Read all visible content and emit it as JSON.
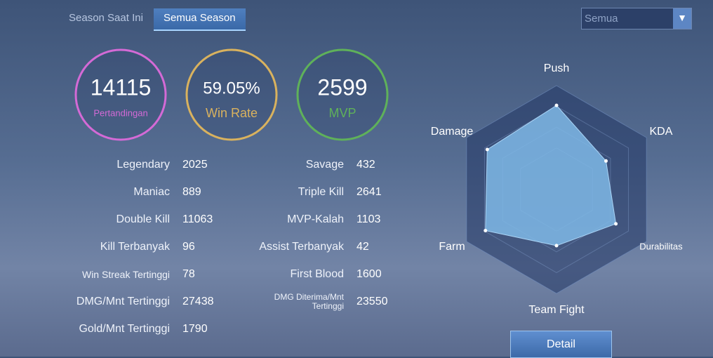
{
  "tabs": [
    "Season Saat Ini",
    "Semua Season"
  ],
  "filter": "Semua",
  "summary": [
    {
      "value": 14115,
      "label": "Pertandingan",
      "color": "#d46ad6"
    },
    {
      "value": 59.05,
      "value_label": "59.05%",
      "label": "Win Rate",
      "color": "#d9b25e"
    },
    {
      "value": 2599,
      "label": "MVP",
      "color": "#5fb15a"
    }
  ],
  "stats_left": [
    {
      "label": "Legendary",
      "value": 2025
    },
    {
      "label": "Maniac",
      "value": 889
    },
    {
      "label": "Double Kill",
      "value": 11063
    },
    {
      "label": "Kill Terbanyak",
      "value": 96
    },
    {
      "label": "Win Streak Tertinggi",
      "value": 78
    },
    {
      "label": "DMG/Mnt Tertinggi",
      "value": 27438
    },
    {
      "label": "Gold/Mnt Tertinggi",
      "value": 1790
    }
  ],
  "stats_right": [
    {
      "label": "Savage",
      "value": 432
    },
    {
      "label": "Triple Kill",
      "value": 2641
    },
    {
      "label": "MVP-Kalah",
      "value": 1103
    },
    {
      "label": "Assist Terbanyak",
      "value": 42
    },
    {
      "label": "First Blood",
      "value": 1600
    },
    {
      "label": "DMG Diterima/Mnt Tertinggi",
      "value": 23550
    }
  ],
  "radar": {
    "type": "radar",
    "axes": [
      "Push",
      "KDA",
      "Durabilitas",
      "Team Fight",
      "Farm",
      "Damage"
    ],
    "values": [
      81,
      55,
      66,
      54,
      79,
      77
    ],
    "rlim": [
      0,
      100
    ],
    "color": "#7fb8e6"
  },
  "button": "Detail"
}
